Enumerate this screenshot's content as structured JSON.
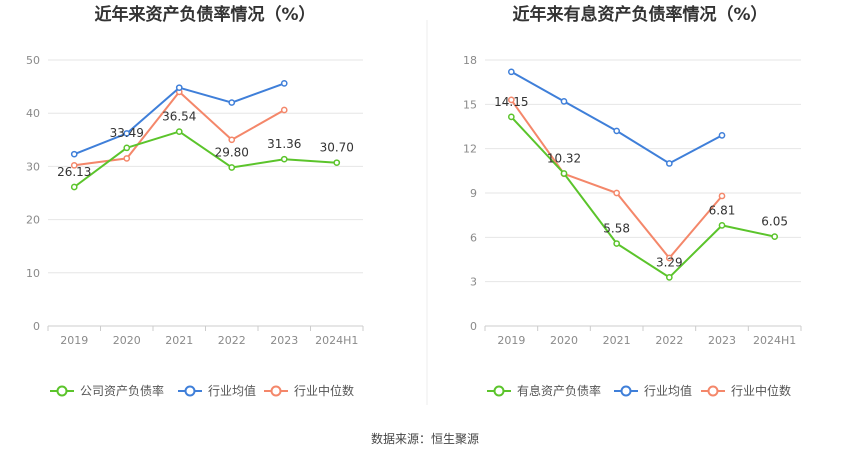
{
  "chart_data": [
    {
      "type": "line",
      "title": "近年来资产负债率情况（%）",
      "categories": [
        "2019",
        "2020",
        "2021",
        "2022",
        "2023",
        "2024H1"
      ],
      "ylim": [
        0,
        50
      ],
      "yticks": [
        0,
        10,
        20,
        30,
        40,
        50
      ],
      "grid": true,
      "legend_position": "bottom",
      "series": [
        {
          "name": "公司资产负债率",
          "color": "#5bc42b",
          "values": [
            26.13,
            33.49,
            36.54,
            29.8,
            31.36,
            30.7
          ],
          "labels": [
            "26.13",
            "33.49",
            "36.54",
            "29.80",
            "31.36",
            "30.70"
          ]
        },
        {
          "name": "行业均值",
          "color": "#3f7fd9",
          "values": [
            32.3,
            36.2,
            44.8,
            42.0,
            45.6,
            null
          ]
        },
        {
          "name": "行业中位数",
          "color": "#f4876a",
          "values": [
            30.2,
            31.5,
            44.0,
            35.0,
            40.6,
            null
          ]
        }
      ]
    },
    {
      "type": "line",
      "title": "近年来有息资产负债率情况（%）",
      "categories": [
        "2019",
        "2020",
        "2021",
        "2022",
        "2023",
        "2024H1"
      ],
      "ylim": [
        0,
        18
      ],
      "yticks": [
        0,
        3,
        6,
        9,
        12,
        15,
        18
      ],
      "grid": true,
      "legend_position": "bottom",
      "series": [
        {
          "name": "有息资产负债率",
          "color": "#5bc42b",
          "values": [
            14.15,
            10.32,
            5.58,
            3.29,
            6.81,
            6.05
          ],
          "labels": [
            "14.15",
            "10.32",
            "5.58",
            "3.29",
            "6.81",
            "6.05"
          ]
        },
        {
          "name": "行业均值",
          "color": "#3f7fd9",
          "values": [
            17.2,
            15.2,
            13.2,
            11.0,
            12.9,
            null
          ]
        },
        {
          "name": "行业中位数",
          "color": "#f4876a",
          "values": [
            15.3,
            10.3,
            9.0,
            4.6,
            8.8,
            null
          ]
        }
      ]
    }
  ],
  "footer": {
    "source": "数据来源：恒生聚源"
  }
}
